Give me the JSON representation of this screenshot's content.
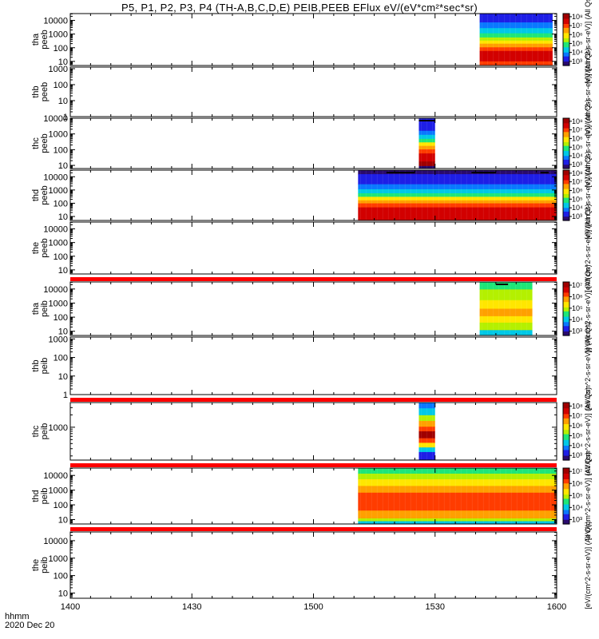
{
  "title": "P5, P1, P2, P3, P4 (TH-A,B,C,D,E) PEIB,PEEB EFlux eV/(eV*cm²*sec*sr)",
  "footer": {
    "time_label": "hhmm",
    "date_label": "2020 Dec 20"
  },
  "colors": {
    "axis": "#000000",
    "missing_data_bar": "#ff0000",
    "colormap": [
      "#2a0a6e",
      "#1e1ee6",
      "#0a78ff",
      "#00c8e6",
      "#1ee678",
      "#b4f000",
      "#ffe600",
      "#ffa000",
      "#ff3c00",
      "#d20000",
      "#a00000"
    ]
  },
  "chart_data": {
    "type": "heatmap",
    "x_axis": {
      "unit": "hhmm",
      "range": [
        "1400",
        "1600"
      ],
      "ticks": [
        "1400",
        "1430",
        "1500",
        "1530",
        "1600"
      ],
      "minor_tick_step_minutes": 5
    },
    "panels": [
      {
        "probe": "tha",
        "product": "peeb",
        "ylabel": [
          "tha",
          "peeb"
        ],
        "y_ticks": [
          "10",
          "100",
          "1000",
          "10000"
        ],
        "y_range_log10": [
          0.7,
          4.5
        ],
        "colorbar": {
          "ticks": [
            "10³",
            "10⁴",
            "10⁵",
            "10⁶",
            "10⁷",
            "10⁸"
          ],
          "label": "[eV/(cm^2-s-sr-eV)] (All Qs)"
        },
        "data_intervals": [
          {
            "start": "1541",
            "end": "1559",
            "profile": "tha_peeb"
          }
        ],
        "quality_flags": [],
        "missing_bar_below": false
      },
      {
        "probe": "thb",
        "product": "peeb",
        "ylabel": [
          "thb",
          "peeb"
        ],
        "y_ticks": [
          "1",
          "10",
          "100",
          "1000"
        ],
        "y_range_log10": [
          0,
          3.1
        ],
        "colorbar": {
          "ticks": [],
          "label": "[eV/(cm^2-s-sr-eV)] (All Qs)"
        },
        "data_intervals": [],
        "quality_flags": [],
        "missing_bar_below": false
      },
      {
        "probe": "thc",
        "product": "peeb",
        "ylabel": [
          "thc",
          "peeb"
        ],
        "y_ticks": [
          "10",
          "100",
          "1000",
          "10000"
        ],
        "y_range_log10": [
          0.8,
          4.0
        ],
        "colorbar": {
          "ticks": [
            "10³",
            "10⁴",
            "10⁵",
            "10⁶",
            "10⁷",
            "10⁸"
          ],
          "label": "[eV/(cm^2-s-sr-eV)] (All Qs)"
        },
        "data_intervals": [
          {
            "start": "1526",
            "end": "1530",
            "profile": "thc_peeb"
          }
        ],
        "quality_flags": [
          {
            "start": "1526",
            "end": "1530"
          }
        ],
        "missing_bar_below": false
      },
      {
        "probe": "thd",
        "product": "peeb",
        "ylabel": [
          "thd",
          "peeb"
        ],
        "y_ticks": [
          "10",
          "100",
          "1000",
          "10000"
        ],
        "y_range_log10": [
          0.7,
          4.5
        ],
        "colorbar": {
          "ticks": [
            "10³",
            "10⁴",
            "10⁵",
            "10⁶",
            "10⁷",
            "10⁸"
          ],
          "label": "[eV/(cm^2-s-sr-eV)] (All Qs)"
        },
        "data_intervals": [
          {
            "start": "1511",
            "end": "1600",
            "profile": "thd_peeb"
          }
        ],
        "quality_flags": [
          {
            "start": "1518",
            "end": "1525"
          },
          {
            "start": "1539",
            "end": "1545"
          },
          {
            "start": "1556",
            "end": "1558"
          }
        ],
        "missing_bar_below": false
      },
      {
        "probe": "the",
        "product": "peeb",
        "ylabel": [
          "the",
          "peeb"
        ],
        "y_ticks": [
          "10",
          "100",
          "1000",
          "10000"
        ],
        "y_range_log10": [
          0.7,
          4.5
        ],
        "colorbar": {
          "ticks": [],
          "label": "[eV/(cm^2-s-sr-eV)] (All Qs)"
        },
        "data_intervals": [],
        "quality_flags": [],
        "missing_bar_below": true
      },
      {
        "probe": "tha",
        "product": "peib",
        "ylabel": [
          "tha",
          "peib"
        ],
        "y_ticks": [
          "10",
          "100",
          "1000",
          "10000"
        ],
        "y_range_log10": [
          0.7,
          4.5
        ],
        "colorbar": {
          "ticks": [
            "10³",
            "10⁴",
            "10⁵",
            "10⁶",
            "10⁷"
          ],
          "label": "[eV/(cm^2-s-sr-eV)] (All Qs)"
        },
        "data_intervals": [
          {
            "start": "1541",
            "end": "1554",
            "profile": "tha_peib"
          }
        ],
        "quality_flags": [
          {
            "start": "1545",
            "end": "1548"
          }
        ],
        "missing_bar_below": false
      },
      {
        "probe": "thb",
        "product": "peib",
        "ylabel": [
          "thb",
          "peib"
        ],
        "y_ticks": [
          "1",
          "10",
          "100",
          "1000"
        ],
        "y_range_log10": [
          0,
          3.1
        ],
        "colorbar": {
          "ticks": [],
          "label": "[eV/(cm^2-s-sr-eV)] (All Qs)"
        },
        "data_intervals": [],
        "quality_flags": [],
        "missing_bar_below": true
      },
      {
        "probe": "thc",
        "product": "peib",
        "ylabel": [
          "thc",
          "peib"
        ],
        "y_ticks": [
          "1000"
        ],
        "y_range_log10": [
          2.2,
          3.6
        ],
        "colorbar": {
          "ticks": [
            "10³",
            "10⁴",
            "10⁵",
            "10⁶",
            "10⁷",
            "10⁸"
          ],
          "label": "[eV/(cm^2-s-sr-eV)] (All Qs)"
        },
        "data_intervals": [
          {
            "start": "1526",
            "end": "1530",
            "profile": "thc_peib"
          }
        ],
        "quality_flags": [],
        "missing_bar_below": true
      },
      {
        "probe": "thd",
        "product": "peib",
        "ylabel": [
          "thd",
          "peib"
        ],
        "y_ticks": [
          "10",
          "100",
          "1000",
          "10000"
        ],
        "y_range_log10": [
          0.7,
          4.5
        ],
        "colorbar": {
          "ticks": [
            "10³",
            "10⁴",
            "10⁵",
            "10⁶",
            "10⁷"
          ],
          "label": "[eV/(cm^2-s-sr-eV)] (All Qs)"
        },
        "data_intervals": [
          {
            "start": "1511",
            "end": "1600",
            "profile": "thd_peib"
          }
        ],
        "quality_flags": [],
        "missing_bar_below": true
      },
      {
        "probe": "the",
        "product": "peib",
        "ylabel": [
          "the",
          "peib"
        ],
        "y_ticks": [
          "10",
          "100",
          "1000",
          "10000"
        ],
        "y_range_log10": [
          0.7,
          4.5
        ],
        "colorbar": {
          "ticks": [],
          "label": "[eV/(cm^2-s-sr-eV)] (All Qs)"
        },
        "data_intervals": [],
        "quality_flags": [],
        "missing_bar_below": false
      }
    ]
  }
}
